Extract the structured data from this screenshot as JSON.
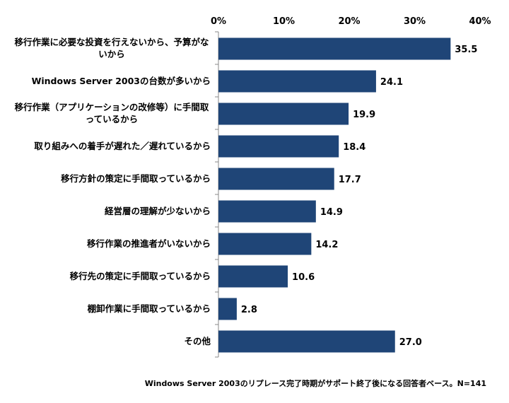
{
  "chart_data": {
    "type": "bar",
    "orientation": "horizontal",
    "categories": [
      "移行作業に必要な投資を行えないから、予算がないから",
      "Windows Server 2003の台数が多いから",
      "移行作業（アプリケーションの改修等）に手間取っているから",
      "取り組みへの着手が遅れた／遅れているから",
      "移行方針の策定に手間取っているから",
      "経営層の理解が少ないから",
      "移行作業の推進者がいないから",
      "移行先の策定に手間取っているから",
      "棚卸作業に手間取っているから",
      "その他"
    ],
    "values": [
      35.5,
      24.1,
      19.9,
      18.4,
      17.7,
      14.9,
      14.2,
      10.6,
      2.8,
      27.0
    ],
    "value_labels": [
      "35.5",
      "24.1",
      "19.9",
      "18.4",
      "17.7",
      "14.9",
      "14.2",
      "10.6",
      "2.8",
      "27.0"
    ],
    "xlim": [
      0,
      40
    ],
    "xticks": [
      "0%",
      "10%",
      "20%",
      "30%",
      "40%"
    ],
    "axis_position": "top",
    "grid": false,
    "bar_color": "#1F4577",
    "note": "Windows Server 2003のリプレース完了時期がサポート終了後になる回答者ベース。N=141"
  }
}
